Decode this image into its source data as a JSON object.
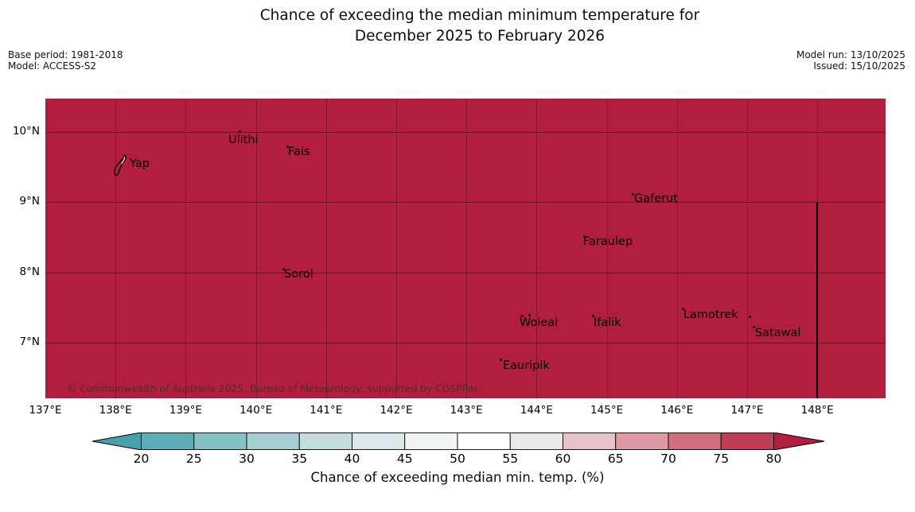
{
  "title": {
    "line1": "Chance of exceeding the median minimum temperature for",
    "line2": "December 2025 to February 2026"
  },
  "meta_left": {
    "base_period": "Base period: 1981-2018",
    "model": "Model: ACCESS-S2"
  },
  "meta_right": {
    "model_run": "Model run: 13/10/2025",
    "issued": "Issued: 15/10/2025"
  },
  "attribution": "© Commonwealth of Australia 2025, Bureau of Meteorology, supported by COSPPac",
  "chart_data": {
    "type": "heatmap",
    "subtype": "geographic-probability-map",
    "title": "Chance of exceeding the median minimum temperature for December 2025 to February 2026",
    "field_description": "Entire mapped region (Yap State, FSM) shaded in the highest class: chance > 80%",
    "field_value_percent": ">80",
    "map": {
      "fill_color": "#b21e3e",
      "lon_min": 137.0,
      "lon_max": 148.973,
      "lat_top": 10.475,
      "lat_bottom": 6.211,
      "grid_on": true,
      "x_ticks": [
        {
          "label": "137°E",
          "lon": 137
        },
        {
          "label": "138°E",
          "lon": 138
        },
        {
          "label": "139°E",
          "lon": 139
        },
        {
          "label": "140°E",
          "lon": 140
        },
        {
          "label": "141°E",
          "lon": 141
        },
        {
          "label": "142°E",
          "lon": 142
        },
        {
          "label": "143°E",
          "lon": 143
        },
        {
          "label": "144°E",
          "lon": 144
        },
        {
          "label": "145°E",
          "lon": 145
        },
        {
          "label": "146°E",
          "lon": 146
        },
        {
          "label": "147°E",
          "lon": 147
        },
        {
          "label": "148°E",
          "lon": 148
        }
      ],
      "y_ticks": [
        {
          "label": "10°N",
          "lat": 10
        },
        {
          "label": "9°N",
          "lat": 9
        },
        {
          "label": "8°N",
          "lat": 8
        },
        {
          "label": "7°N",
          "lat": 7
        }
      ],
      "boundary_line": {
        "lon": 147.998,
        "lat_from": 9.005,
        "lat_to": 6.211,
        "color": "#000000"
      }
    },
    "places": [
      {
        "label": "Yap",
        "lon": 137.964,
        "lat": 9.683,
        "island": true,
        "dots": [],
        "text_offset": [
          21,
          5
        ]
      },
      {
        "label": "Ulithi",
        "lon": 139.608,
        "lat": 9.989,
        "island": false,
        "dots": [
          [
            13,
            -3
          ]
        ],
        "text_offset": [
          0,
          2
        ]
      },
      {
        "label": "Fais",
        "lon": 140.435,
        "lat": 9.808,
        "island": false,
        "dots": [
          [
            0,
            0
          ]
        ],
        "text_offset": [
          2,
          1
        ]
      },
      {
        "label": "Gaferut",
        "lon": 145.356,
        "lat": 9.129,
        "island": false,
        "dots": [
          [
            0,
            0
          ]
        ],
        "text_offset": [
          3,
          0
        ]
      },
      {
        "label": "Faraulep",
        "lon": 144.664,
        "lat": 8.529,
        "island": false,
        "dots": [
          [
            0,
            0
          ]
        ],
        "text_offset": [
          0,
          1
        ]
      },
      {
        "label": "Sorol",
        "lon": 140.379,
        "lat": 8.066,
        "island": false,
        "dots": [
          [
            0,
            0
          ]
        ],
        "text_offset": [
          2,
          1
        ]
      },
      {
        "label": "Woleai",
        "lon": 143.78,
        "lat": 7.41,
        "island": false,
        "dots": [
          [
            0,
            1
          ],
          [
            9,
            0
          ]
        ],
        "text_offset": [
          -2,
          4
        ]
      },
      {
        "label": "Ifalik",
        "lon": 144.789,
        "lat": 7.398,
        "island": false,
        "dots": [
          [
            0,
            0
          ]
        ],
        "text_offset": [
          2,
          3
        ]
      },
      {
        "label": "Lamotrek",
        "lon": 146.07,
        "lat": 7.5,
        "island": false,
        "dots": [
          [
            0,
            0
          ]
        ],
        "text_offset": [
          2,
          2
        ]
      },
      {
        "label": "",
        "lon": 147.023,
        "lat": 7.387,
        "island": false,
        "dots": [
          [
            0,
            0
          ]
        ],
        "text_offset": [
          0,
          0
        ]
      },
      {
        "label": "Satawal",
        "lon": 147.079,
        "lat": 7.24,
        "island": false,
        "dots": [
          [
            0,
            0
          ]
        ],
        "text_offset": [
          3,
          2
        ]
      },
      {
        "label": "Eauripik",
        "lon": 143.474,
        "lat": 6.776,
        "island": false,
        "dots": [
          [
            0,
            0
          ]
        ],
        "text_offset": [
          4,
          2
        ]
      }
    ]
  },
  "colorbar": {
    "caption": "Chance of exceeding median min. temp. (%)",
    "levels": [
      20,
      25,
      30,
      35,
      40,
      45,
      50,
      55,
      60,
      65,
      70,
      75,
      80
    ],
    "tick_labels": [
      "20",
      "25",
      "30",
      "35",
      "40",
      "45",
      "50",
      "55",
      "60",
      "65",
      "70",
      "75",
      "80"
    ],
    "segment_colors": [
      "#5fadb7",
      "#87c0c7",
      "#a5cfd3",
      "#c2dce0",
      "#d9e8ea",
      "#eff5f5",
      "#ffffff",
      "#eae8e8",
      "#e6c3c9",
      "#dd9ba5",
      "#d26f7e",
      "#c23e54"
    ],
    "arrow_left_color": "#47a0ac",
    "arrow_right_color": "#b01f3f",
    "outline_color": "#000000"
  }
}
